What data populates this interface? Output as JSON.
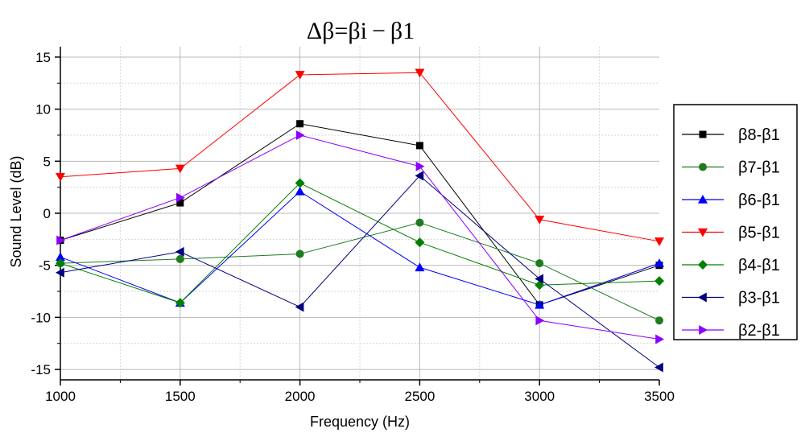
{
  "chart_data": {
    "type": "line",
    "title": "Δβ=βi − β1",
    "xlabel": "Frequency (Hz)",
    "ylabel": "Sound Level (dB)",
    "xlim": [
      1000,
      3500
    ],
    "ylim": [
      -16,
      16
    ],
    "x": [
      1000,
      1500,
      2000,
      2500,
      3000,
      3500
    ],
    "xticks": [
      "1000",
      "1500",
      "2000",
      "2500",
      "3000",
      "3500"
    ],
    "yticks": [
      15,
      10,
      5,
      0,
      -5,
      -10,
      -15
    ],
    "ytick_labels": [
      "15",
      "10",
      "5",
      "0",
      "-5",
      "-10",
      "-15"
    ],
    "grid": true,
    "legend_position": "right",
    "series": [
      {
        "name": "β8-β1",
        "marker": "square",
        "color": "#000000",
        "values": [
          -2.6,
          1.0,
          8.6,
          6.5,
          -8.8,
          -5.0
        ]
      },
      {
        "name": "β7-β1",
        "marker": "circle",
        "color": "#1e7b1e",
        "values": [
          -4.8,
          -4.4,
          -3.9,
          -0.9,
          -4.8,
          -10.3
        ]
      },
      {
        "name": "β6-β1",
        "marker": "triangle-up",
        "color": "#0000ff",
        "values": [
          -4.2,
          -8.6,
          2.1,
          -5.2,
          -8.8,
          -4.8
        ]
      },
      {
        "name": "β5-β1",
        "marker": "triangle-down",
        "color": "#ff0000",
        "values": [
          3.5,
          4.3,
          13.3,
          13.5,
          -0.6,
          -2.7
        ]
      },
      {
        "name": "β4-β1",
        "marker": "diamond",
        "color": "#008000",
        "values": [
          -4.8,
          -8.6,
          2.9,
          -2.8,
          -6.9,
          -6.5
        ]
      },
      {
        "name": "β3-β1",
        "marker": "triangle-left",
        "color": "#000080",
        "values": [
          -5.7,
          -3.7,
          -9.0,
          3.6,
          -6.3,
          -14.8
        ]
      },
      {
        "name": "β2-β1",
        "marker": "triangle-right",
        "color": "#8b00ff",
        "values": [
          -2.6,
          1.5,
          7.5,
          4.5,
          -10.3,
          -12.1
        ]
      }
    ]
  }
}
